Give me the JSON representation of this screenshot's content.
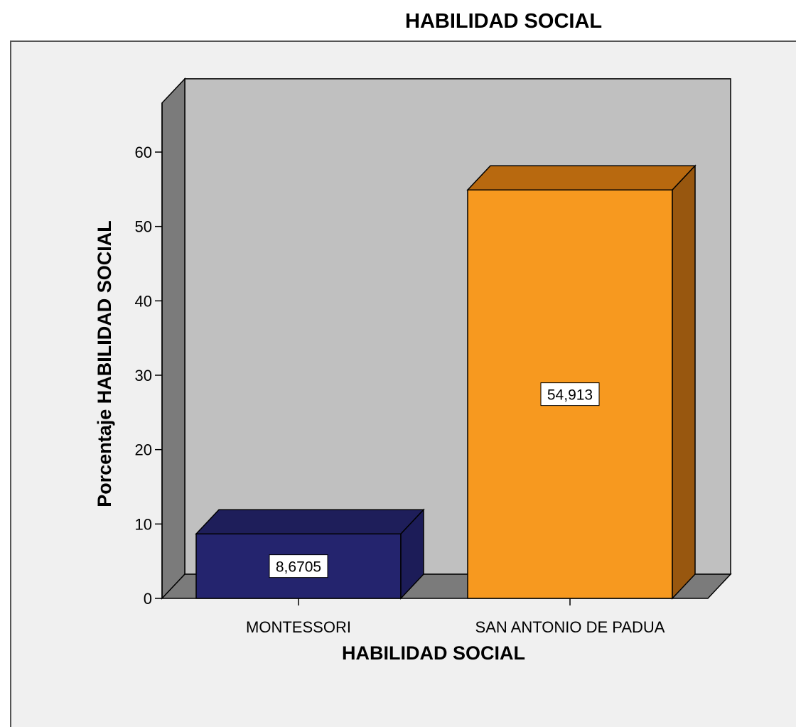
{
  "chart_data": {
    "type": "bar",
    "title": "HABILIDAD SOCIAL",
    "xlabel": "HABILIDAD SOCIAL",
    "ylabel": "Porcentaje HABILIDAD SOCIAL",
    "categories": [
      "MONTESSORI",
      "SAN ANTONIO DE PADUA"
    ],
    "values": [
      8.6705,
      54.913
    ],
    "data_labels": [
      "8,6705",
      "54,913"
    ],
    "yticks": [
      0,
      10,
      20,
      30,
      40,
      50,
      60
    ],
    "ylim": [
      0,
      60
    ],
    "bar_colors": [
      "#24246e",
      "#f7991f"
    ],
    "bar_side_colors": [
      "#1c1c58",
      "#98570f"
    ],
    "bar_top_colors": [
      "#1e1e5a",
      "#b8690f"
    ],
    "wall_color": "#c0c0c0",
    "side_wall_color": "#7b7b7b",
    "floor_color": "#7b7b7b",
    "grid": false,
    "legend": "none"
  }
}
